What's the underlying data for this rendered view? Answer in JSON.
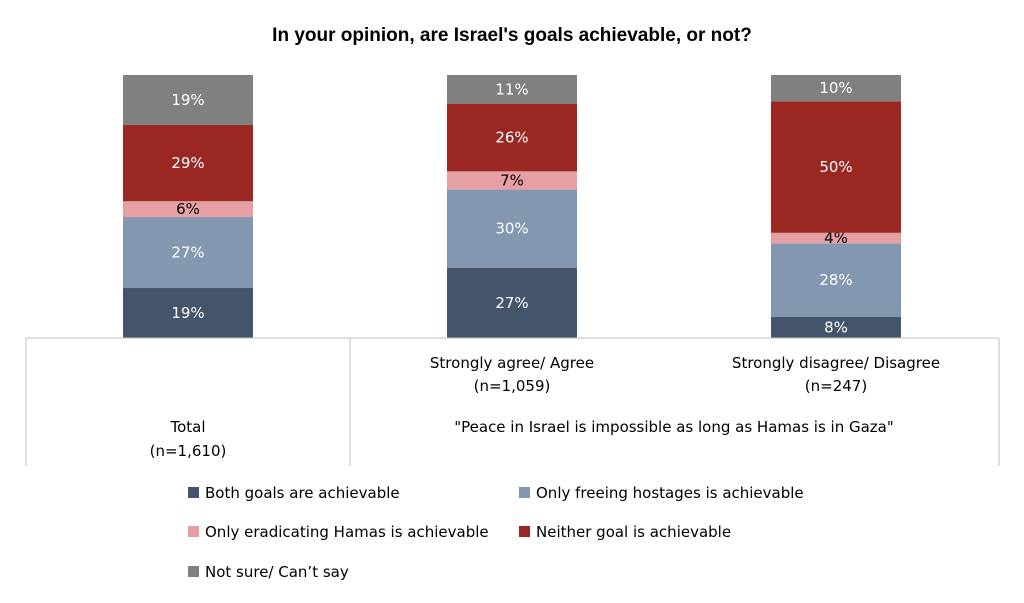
{
  "chart_data": {
    "type": "bar",
    "stacked": true,
    "percent": true,
    "title": "In your opinion, are Israel's goals achievable, or not?",
    "categories": [
      {
        "label": "Total",
        "n": "(n=1,610)"
      },
      {
        "label": "Strongly agree/ Agree",
        "n": "(n=1,059)"
      },
      {
        "label": "Strongly disagree/ Disagree",
        "n": "(n=247)"
      }
    ],
    "group_label": "\"Peace in Israel is impossible as long as Hamas is in Gaza\"",
    "series": [
      {
        "name": "Both goals are achievable",
        "color": "#44546a",
        "label_color": "#ffffff",
        "values": [
          19,
          27,
          8
        ]
      },
      {
        "name": "Only freeing hostages is achievable",
        "color": "#8497b0",
        "label_color": "#ffffff",
        "values": [
          27,
          30,
          28
        ]
      },
      {
        "name": "Only eradicating Hamas is achievable",
        "color": "#e6a0a4",
        "label_color": "#000000",
        "values": [
          6,
          7,
          4
        ]
      },
      {
        "name": "Neither goal is achievable",
        "color": "#9b2723",
        "label_color": "#ffffff",
        "values": [
          29,
          26,
          50
        ]
      },
      {
        "name": "Not sure/ Can’t say",
        "color": "#808080",
        "label_color": "#ffffff",
        "values": [
          19,
          11,
          10
        ]
      }
    ],
    "ylim": [
      0,
      100
    ],
    "grid": false,
    "legend_position": "bottom"
  }
}
